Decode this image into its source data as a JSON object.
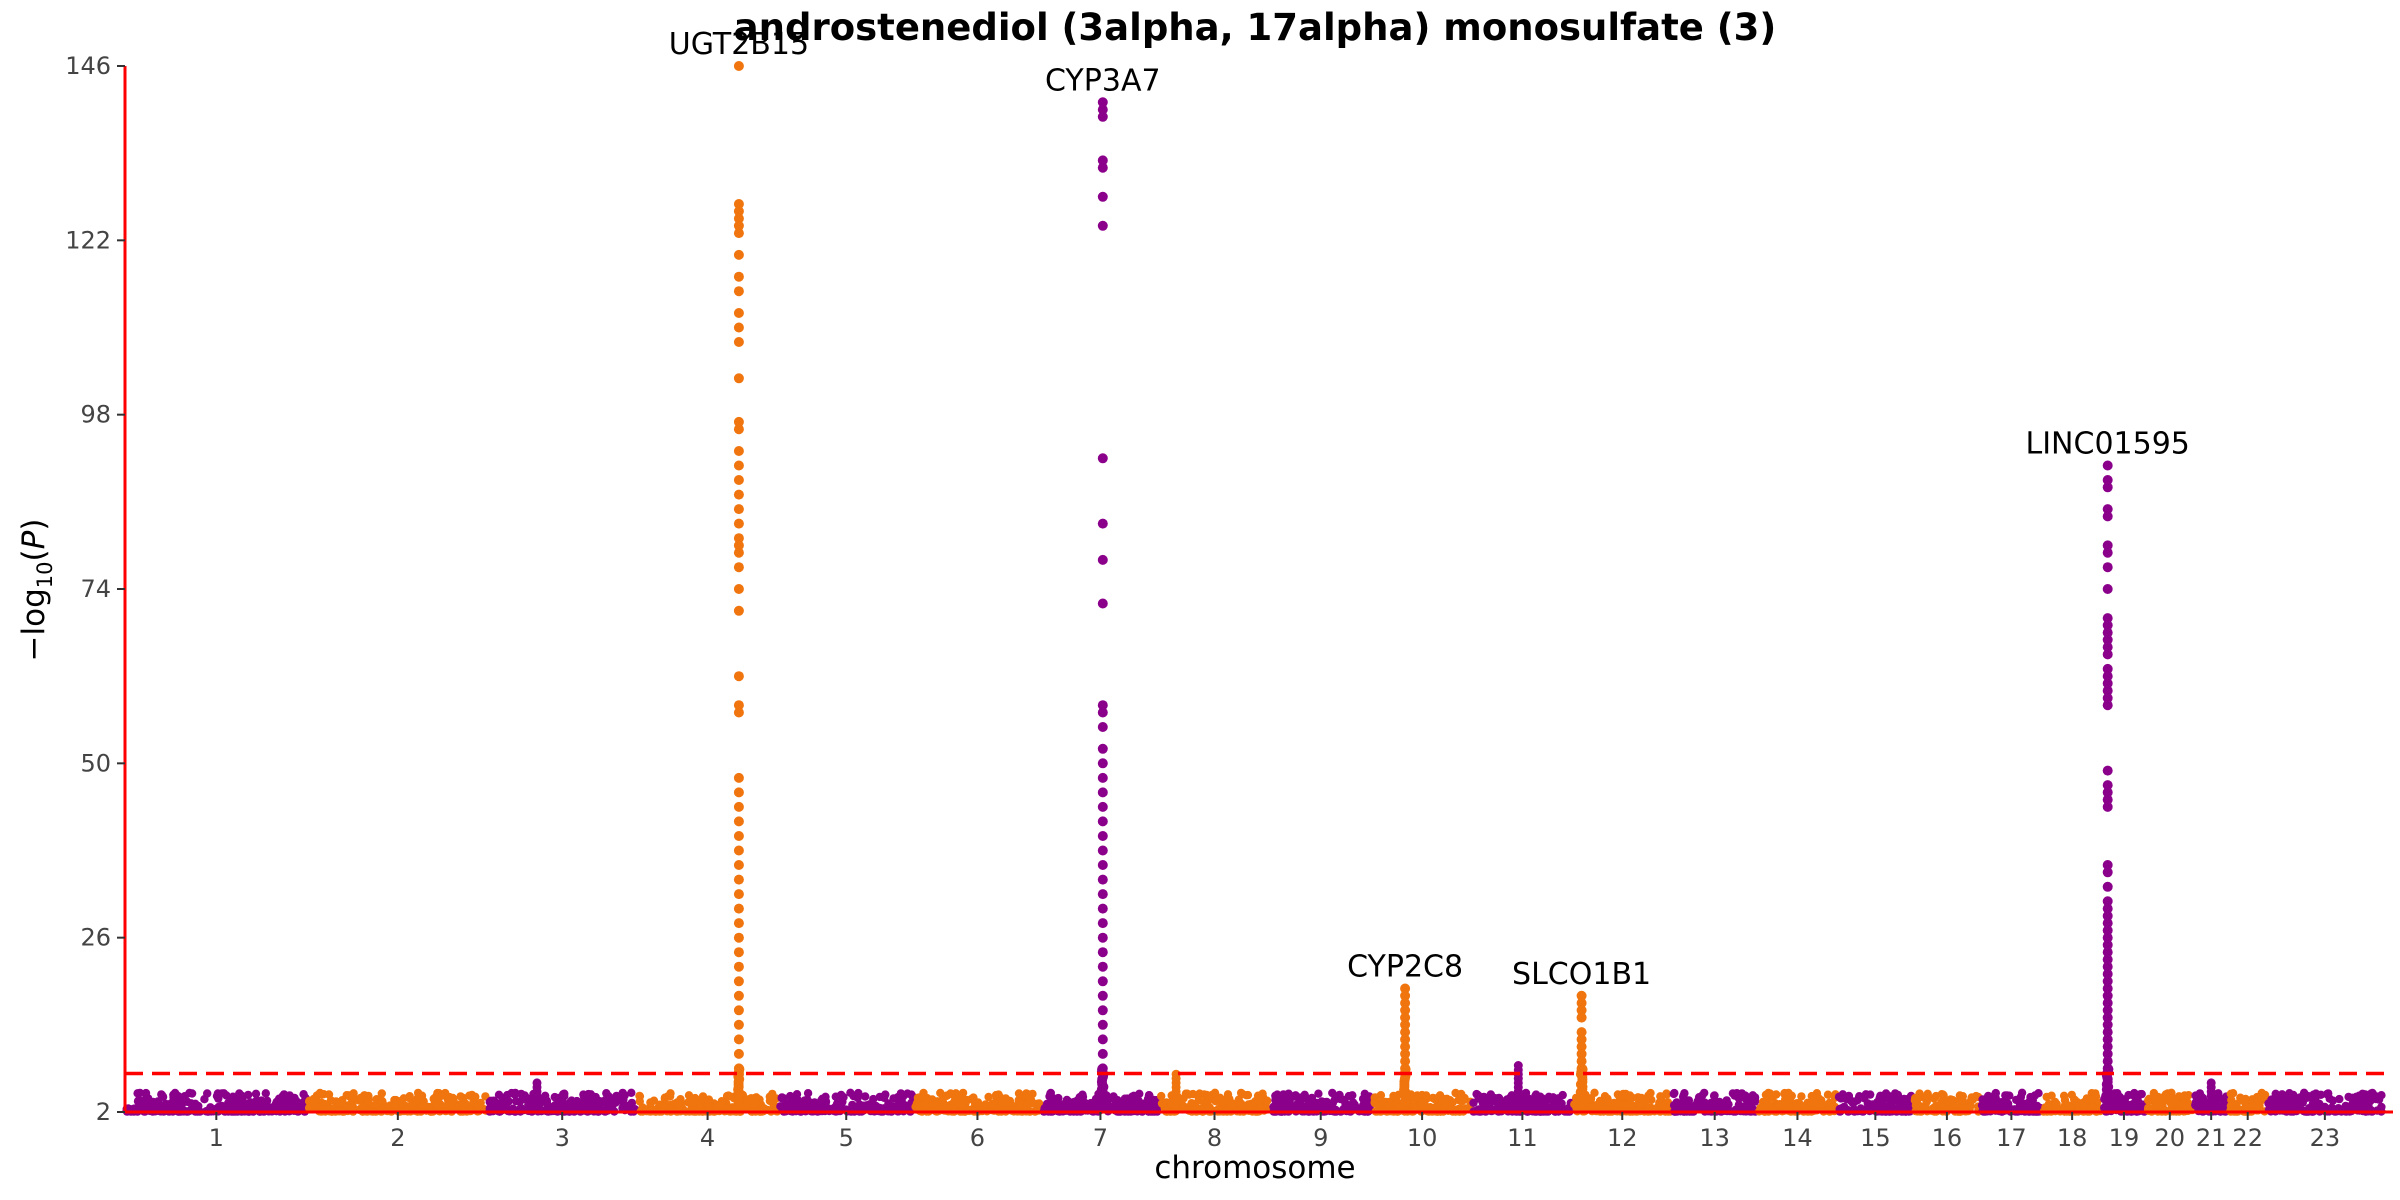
{
  "chart_data": {
    "type": "scatter",
    "title": "androstenediol (3alpha, 17alpha) monosulfate (3)",
    "xlabel": "chromosome",
    "ylabel": "−log10(P)",
    "ylim": [
      2,
      146
    ],
    "yticks": [
      2,
      26,
      50,
      74,
      98,
      122,
      146
    ],
    "significance_threshold": 7.3,
    "colors": {
      "odd": "#8B008B",
      "even": "#F0750F",
      "axis": "#FF0000",
      "threshold": "#FF0000"
    },
    "chromosomes": [
      {
        "label": "1",
        "start": 0.0,
        "end": 2.45
      },
      {
        "label": "2",
        "start": 2.45,
        "end": 4.87
      },
      {
        "label": "3",
        "start": 4.87,
        "end": 6.86
      },
      {
        "label": "4",
        "start": 6.86,
        "end": 8.77
      },
      {
        "label": "5",
        "start": 8.77,
        "end": 10.58
      },
      {
        "label": "6",
        "start": 10.58,
        "end": 12.29
      },
      {
        "label": "7",
        "start": 12.29,
        "end": 13.88
      },
      {
        "label": "8",
        "start": 13.88,
        "end": 15.35
      },
      {
        "label": "9",
        "start": 15.35,
        "end": 16.73
      },
      {
        "label": "10",
        "start": 16.73,
        "end": 18.07
      },
      {
        "label": "11",
        "start": 18.07,
        "end": 19.42
      },
      {
        "label": "12",
        "start": 19.42,
        "end": 20.75
      },
      {
        "label": "13",
        "start": 20.75,
        "end": 21.9
      },
      {
        "label": "14",
        "start": 21.9,
        "end": 22.97
      },
      {
        "label": "15",
        "start": 22.97,
        "end": 23.99
      },
      {
        "label": "16",
        "start": 23.99,
        "end": 24.89
      },
      {
        "label": "17",
        "start": 24.89,
        "end": 25.72
      },
      {
        "label": "18",
        "start": 25.72,
        "end": 26.52
      },
      {
        "label": "19",
        "start": 26.52,
        "end": 27.11
      },
      {
        "label": "20",
        "start": 27.11,
        "end": 27.75
      },
      {
        "label": "21",
        "start": 27.75,
        "end": 28.22
      },
      {
        "label": "22",
        "start": 28.22,
        "end": 28.73
      },
      {
        "label": "23",
        "start": 28.73,
        "end": 30.29
      }
    ],
    "peaks": [
      {
        "chromosome": "4",
        "position": 0.72,
        "gene": "UGT2B15",
        "top": 146,
        "values": [
          146,
          127,
          126,
          125,
          124,
          123,
          120,
          117,
          115,
          112,
          110,
          108,
          103,
          97,
          96,
          93,
          91,
          89,
          87,
          85,
          83,
          81,
          80,
          79,
          77,
          74,
          71,
          62,
          58,
          57,
          48,
          46,
          44,
          42,
          40,
          38,
          36,
          34,
          32,
          30,
          28,
          26,
          24,
          22,
          20,
          18,
          16,
          14,
          12,
          10,
          8
        ]
      },
      {
        "chromosome": "7",
        "position": 0.52,
        "gene": "CYP3A7",
        "top": 141,
        "values": [
          141,
          140,
          139,
          133,
          132,
          128,
          124,
          92,
          83,
          78,
          72,
          58,
          57,
          55,
          52,
          50,
          48,
          46,
          44,
          42,
          40,
          38,
          36,
          34,
          32,
          30,
          28,
          26,
          24,
          22,
          20,
          18,
          16,
          14,
          12,
          10,
          8
        ]
      },
      {
        "chromosome": "10",
        "position": 0.33,
        "gene": "CYP2C8",
        "top": 19,
        "values": [
          19,
          18,
          17,
          16,
          15,
          14,
          13,
          12,
          11,
          10,
          9,
          8
        ]
      },
      {
        "chromosome": "12",
        "position": 0.09,
        "gene": "SLCO1B1",
        "top": 18,
        "values": [
          18,
          17,
          16,
          15,
          13,
          12,
          11,
          10,
          9,
          8
        ]
      },
      {
        "chromosome": "19",
        "position": 0.13,
        "gene": "LINC01595",
        "top": 91,
        "values": [
          91,
          89,
          88,
          85,
          84,
          80,
          79,
          77,
          74,
          70,
          69,
          68,
          67,
          66,
          65,
          63,
          62,
          61,
          60,
          59,
          58,
          49,
          47,
          46,
          45,
          44,
          36,
          35,
          33,
          31,
          30,
          29,
          28,
          27,
          26,
          25,
          24,
          23,
          22,
          21,
          20,
          19,
          18,
          17,
          16,
          15,
          14,
          13,
          12,
          11,
          10,
          9,
          8
        ]
      }
    ],
    "minor_peaks": [
      {
        "chromosome": "8",
        "position": 0.15,
        "top": 7.5
      },
      {
        "chromosome": "11",
        "position": 0.46,
        "top": 8.5
      },
      {
        "chromosome": "3",
        "position": 0.33,
        "top": 6.0
      },
      {
        "chromosome": "21",
        "position": 0.5,
        "top": 6.0
      }
    ]
  }
}
